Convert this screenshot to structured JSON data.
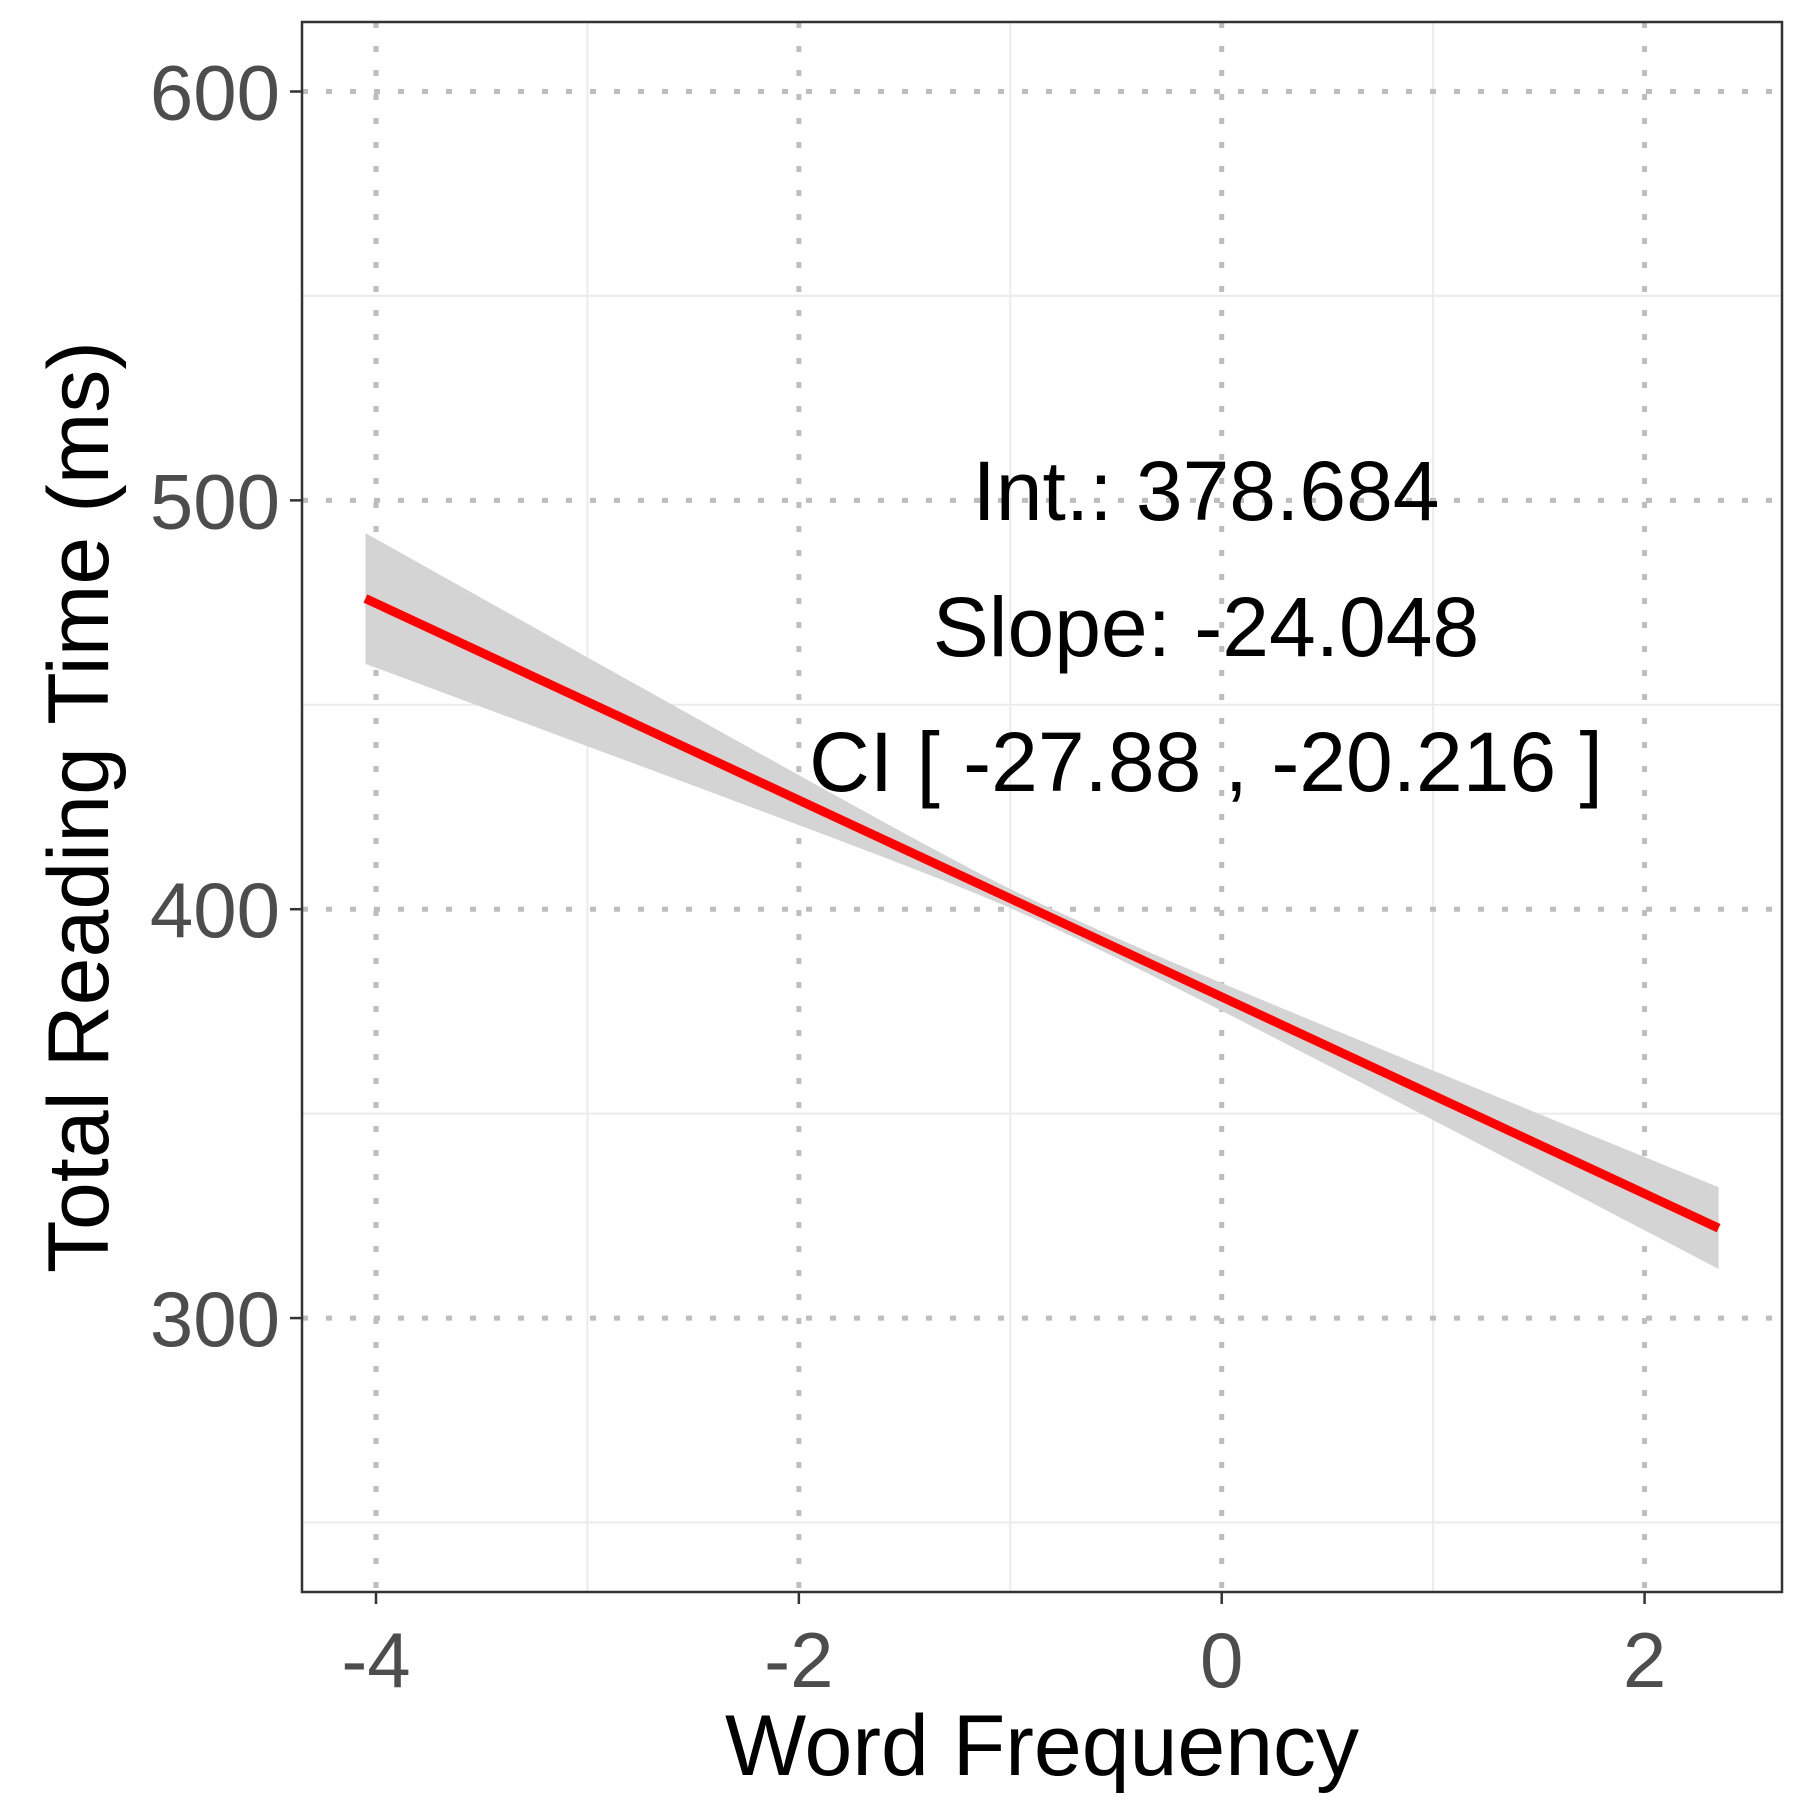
{
  "chart_data": {
    "type": "line",
    "xlabel": "Word Frequency",
    "ylabel": "Total Reading Time (ms)",
    "xlim": [
      -4.35,
      2.65
    ],
    "ylim": [
      233,
      617
    ],
    "x_major_ticks": [
      -4,
      -2,
      0,
      2
    ],
    "x_tick_labels": [
      "-4",
      "-2",
      "0",
      "2"
    ],
    "x_minor_ticks": [
      -3,
      -1,
      1
    ],
    "y_major_ticks": [
      300,
      400,
      500,
      600
    ],
    "y_tick_labels": [
      "300",
      "400",
      "500",
      "600"
    ],
    "y_minor_ticks": [
      250,
      350,
      450,
      550
    ],
    "grid": true,
    "major_grid_style": "dotted",
    "legend": "none",
    "series": [
      {
        "x": [
          -4.05,
          2.35
        ],
        "y": [
          476,
          322
        ],
        "ci_lower": [
          459,
          311
        ],
        "ci_upper": [
          491,
          331
        ],
        "color": "#ff0000",
        "ribbon_color": "#d4d4d4"
      }
    ],
    "annotations": [
      "Int.: 378.684",
      "Slope: -24.048",
      "CI [ -27.88 , -20.216 ]"
    ]
  }
}
